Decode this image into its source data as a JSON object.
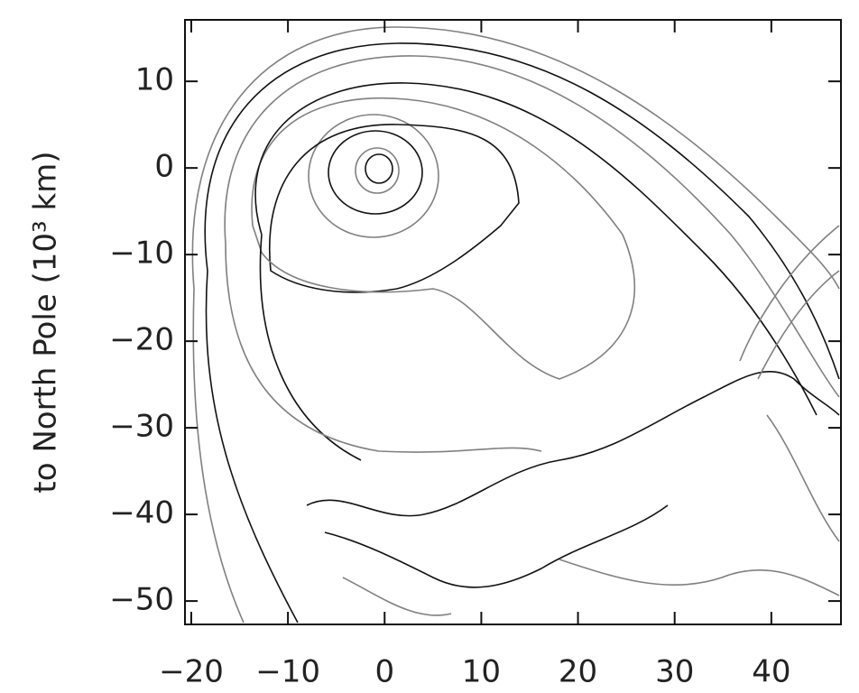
{
  "chart_data": {
    "type": "contour",
    "ylabel": "to North Pole (10³ km)",
    "xlim": [
      -20.65,
      47.2
    ],
    "ylim": [
      -52.7,
      17.1
    ],
    "xticks": [
      {
        "value": -20,
        "label": "−20"
      },
      {
        "value": -10,
        "label": "−10"
      },
      0,
      10,
      20,
      30,
      40
    ],
    "yticks": [
      {
        "value": -50,
        "label": "−50"
      },
      {
        "value": -40,
        "label": "−40"
      },
      {
        "value": -30,
        "label": "−30"
      },
      {
        "value": -20,
        "label": "−20"
      },
      {
        "value": -10,
        "label": "−10"
      },
      0,
      10
    ]
  }
}
